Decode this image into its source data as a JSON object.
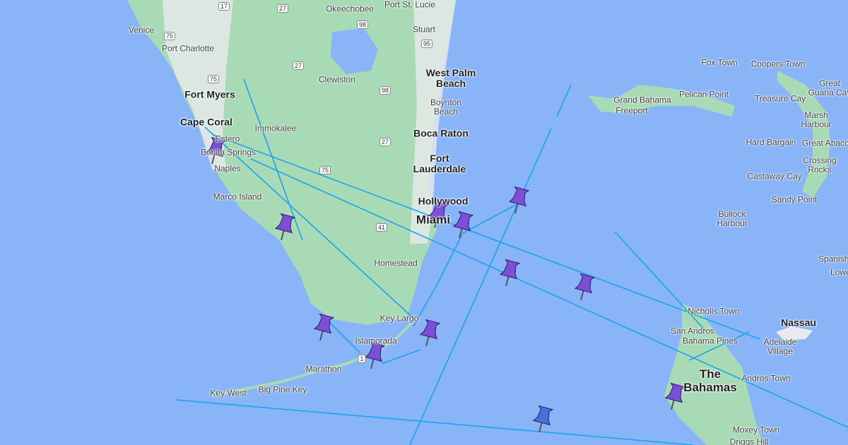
{
  "map": {
    "water_color": "#8ab4f8",
    "land_color": "#a8dab5",
    "route_line_color": "#1aa3f0",
    "pin_color": "#7b4fd6",
    "pin_alt_color": "#4a6fd8",
    "labels": [
      "Venice",
      "Port Charlotte",
      "Fort Myers",
      "Cape Coral",
      "Estero",
      "Bonita Springs",
      "Naples",
      "Marco Island",
      "Immokalee",
      "Clewiston",
      "Okeechobee",
      "Port St. Lucie",
      "Stuart",
      "West Palm Beach",
      "Boynton Beach",
      "Boca Raton",
      "Fort Lauderdale",
      "Hollywood",
      "Miami",
      "Homestead",
      "Key Largo",
      "Islamorada",
      "Marathon",
      "Big Pine Key",
      "Key West",
      "Fox Town",
      "Coopers Town",
      "Great Guana Cay",
      "Treasure Cay",
      "Marsh Harbour",
      "Grand Bahama",
      "Freeport",
      "Pelican Point",
      "Hard Bargain",
      "Great Abaco",
      "Crossing Rocks",
      "Castaway Cay",
      "Sandy Point",
      "Bullock Harbour",
      "Nicholls Town",
      "San Andros",
      "Bahama Pines",
      "Nassau",
      "Adelaide Village",
      "Andros Town",
      "The Bahamas",
      "Moxey Town",
      "Driggs Hill",
      "Spanish Wells",
      "Lower Bogue"
    ],
    "highway_shields": [
      "17",
      "27",
      "98",
      "95",
      "75",
      "27",
      "98",
      "27",
      "75",
      "41",
      "1",
      "75"
    ],
    "pin_count": 12
  }
}
